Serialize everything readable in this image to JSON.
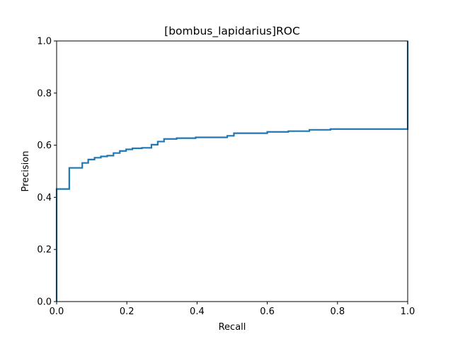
{
  "chart_data": {
    "type": "line",
    "title": "[bombus_lapidarius]ROC",
    "xlabel": "Recall",
    "ylabel": "Precision",
    "xlim": [
      0,
      1
    ],
    "ylim": [
      0,
      1
    ],
    "xticks": [
      "0.0",
      "0.2",
      "0.4",
      "0.6",
      "0.8",
      "1.0"
    ],
    "yticks": [
      "0.0",
      "0.2",
      "0.4",
      "0.6",
      "0.8",
      "1.0"
    ],
    "grid": false,
    "series": [
      {
        "name": "bombus_lapidarius",
        "color": "#1f77b4",
        "drawstyle": "steps-post",
        "x": [
          0.0,
          0.0,
          0.036,
          0.073,
          0.09,
          0.108,
          0.126,
          0.144,
          0.162,
          0.18,
          0.198,
          0.216,
          0.243,
          0.27,
          0.288,
          0.306,
          0.342,
          0.396,
          0.486,
          0.505,
          0.6,
          0.66,
          0.72,
          0.78,
          1.0,
          1.0
        ],
        "y": [
          0.0,
          0.432,
          0.513,
          0.532,
          0.545,
          0.552,
          0.557,
          0.56,
          0.57,
          0.578,
          0.584,
          0.588,
          0.59,
          0.602,
          0.614,
          0.624,
          0.627,
          0.63,
          0.636,
          0.646,
          0.651,
          0.654,
          0.659,
          0.662,
          0.662,
          1.0
        ]
      }
    ]
  }
}
